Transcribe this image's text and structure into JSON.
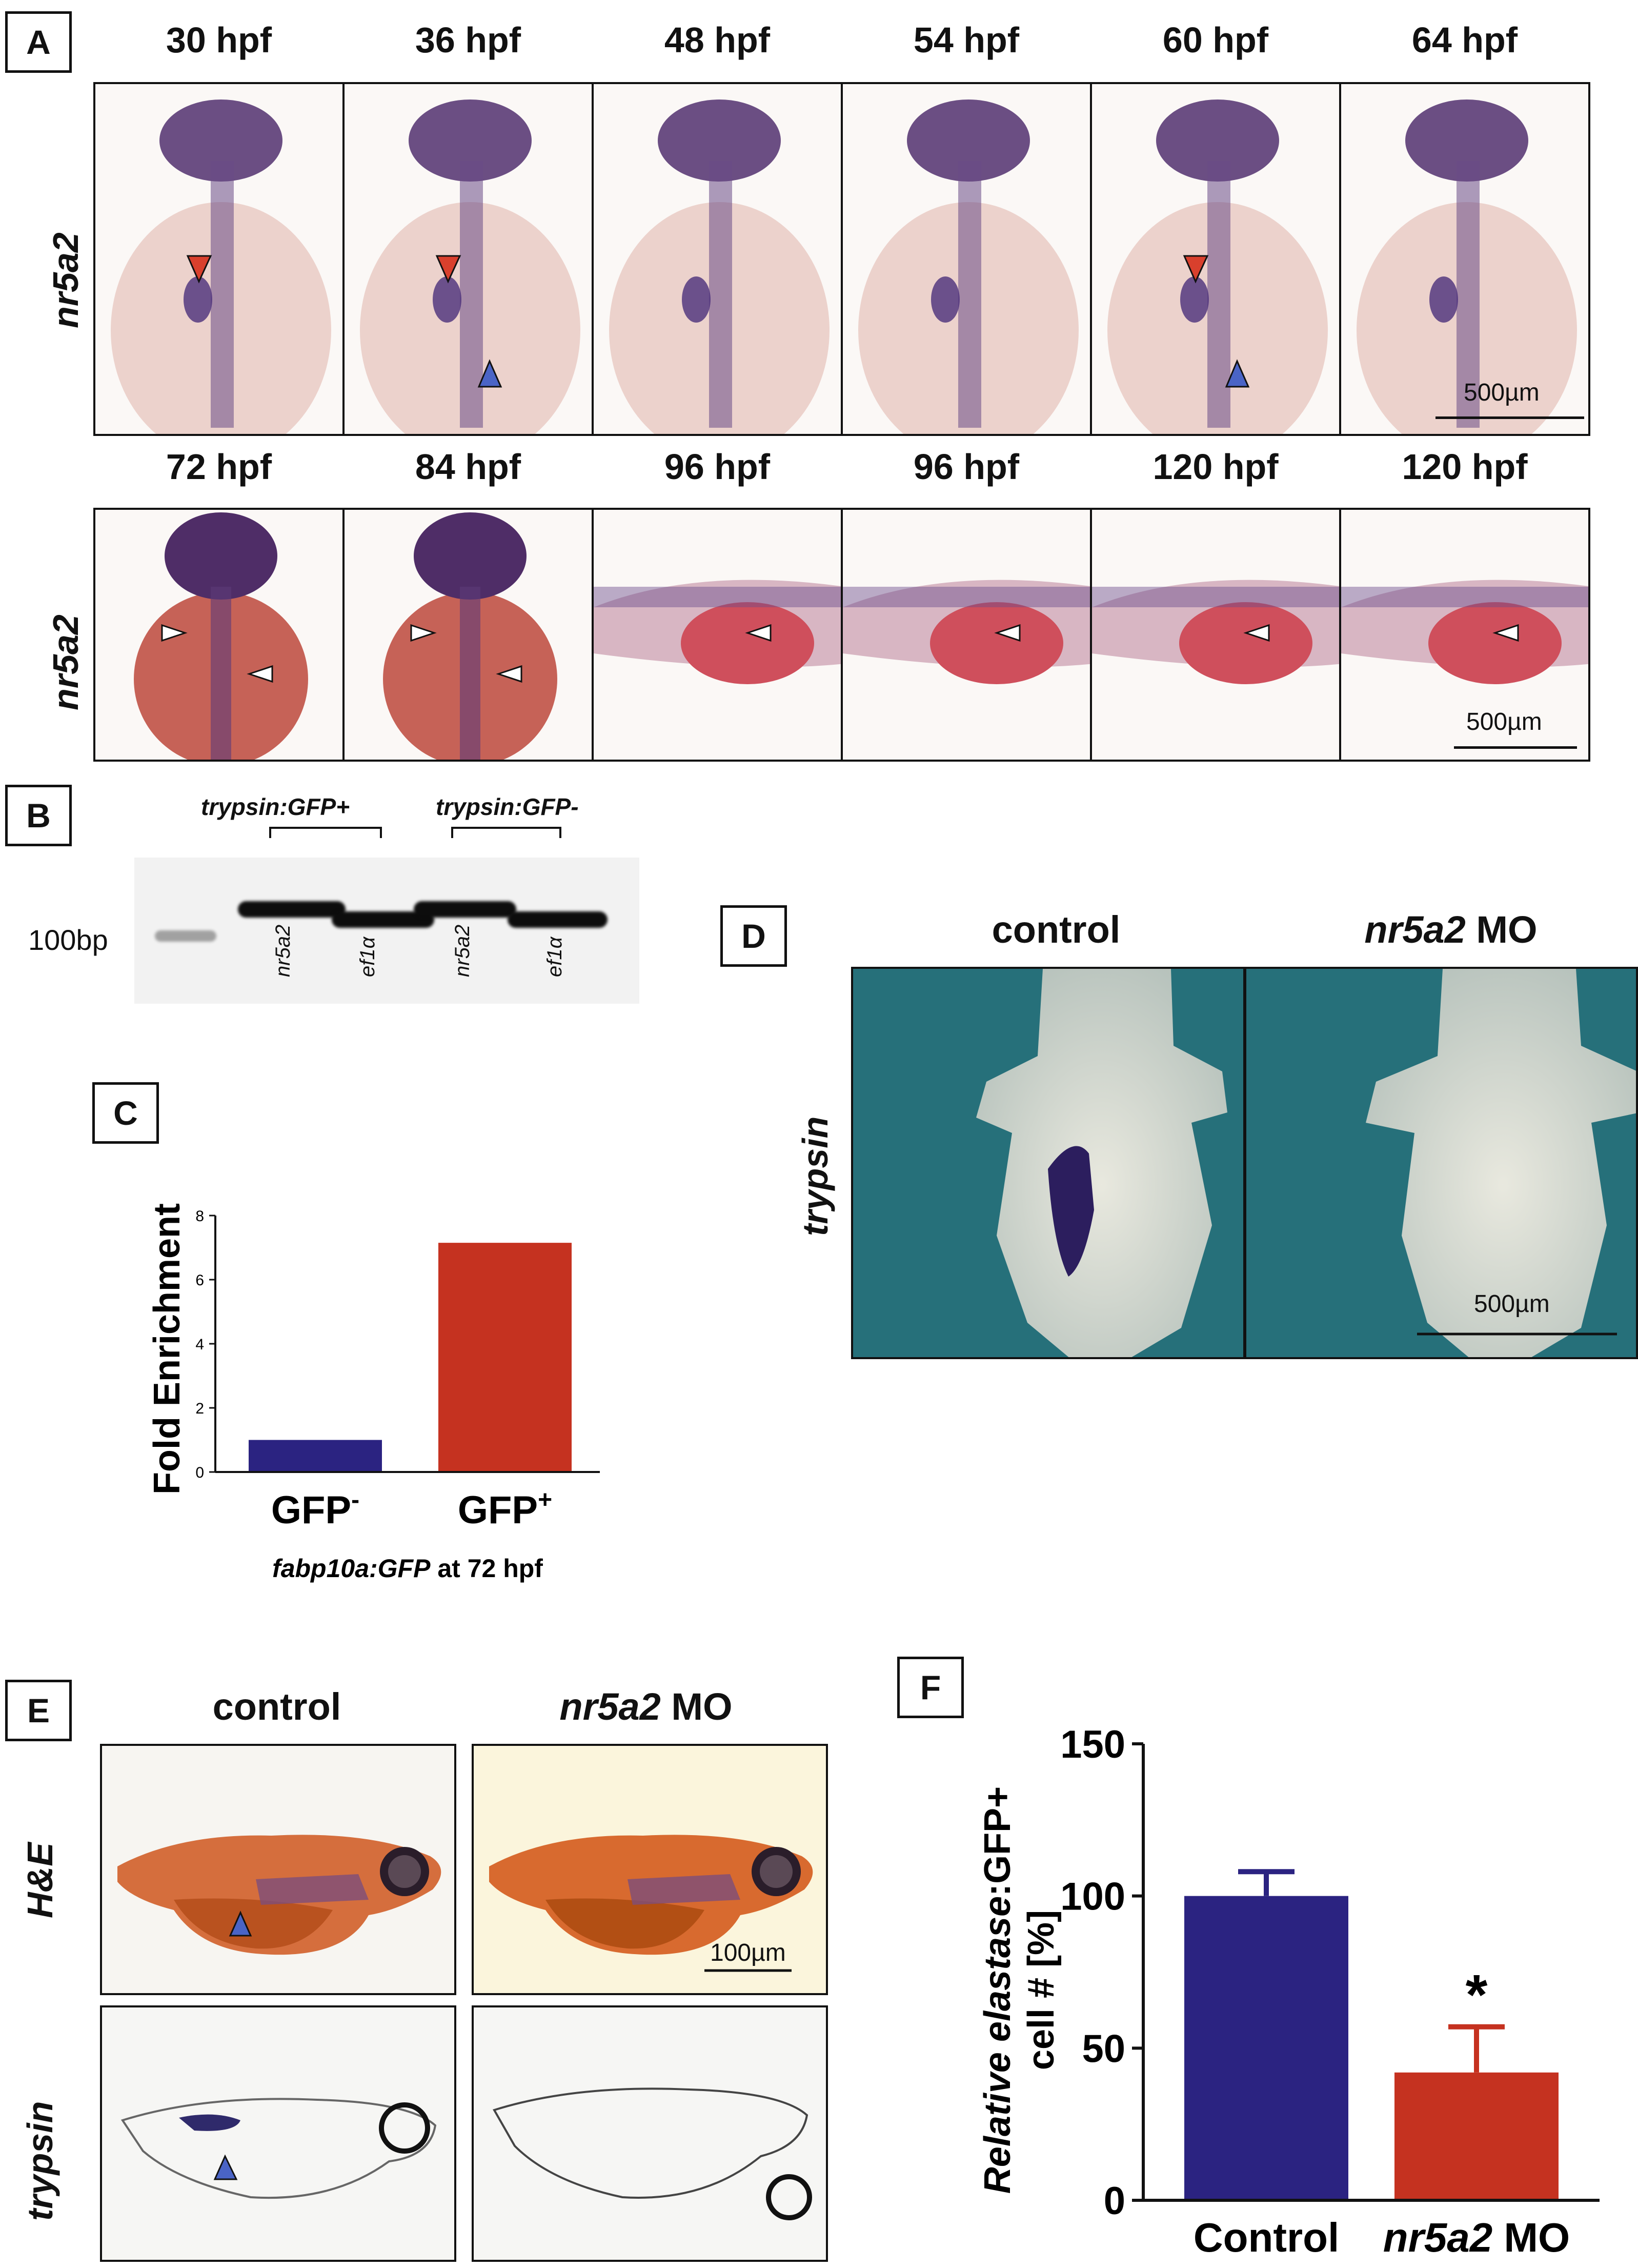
{
  "panelA": {
    "letter": "A",
    "row1_label": "nr5a2",
    "row2_label": "nr5a2",
    "row1_stages": [
      "30 hpf",
      "36 hpf",
      "48 hpf",
      "54 hpf",
      "60 hpf",
      "64 hpf"
    ],
    "row2_stages": [
      "72 hpf",
      "84 hpf",
      "96 hpf",
      "96 hpf",
      "120 hpf",
      "120 hpf"
    ],
    "scale1": "500µm",
    "scale2": "500µm"
  },
  "panelB": {
    "letter": "B",
    "group1": "trypsin:GFP+",
    "group2": "trypsin:GFP-",
    "marker": "100bp",
    "lanes": [
      "nr5a2",
      "ef1α",
      "nr5a2",
      "ef1α"
    ]
  },
  "panelC": {
    "letter": "C",
    "subtitle": "fabp10a:GFP at 72 hpf",
    "subtitle_italic": "fabp10a:GFP",
    "subtitle_rest": " at 72 hpf",
    "cat1_base": "GFP",
    "cat1_sup": "-",
    "cat2_base": "GFP",
    "cat2_sup": "+"
  },
  "panelD": {
    "letter": "D",
    "col1": "control",
    "col2_italic": "nr5a2",
    "col2_rest": " MO",
    "row_label": "trypsin",
    "scale": "500µm"
  },
  "panelE": {
    "letter": "E",
    "col1": "control",
    "col2_italic": "nr5a2",
    "col2_rest": " MO",
    "row1_label": "H&E",
    "row2_label": "trypsin",
    "scale": "100µm"
  },
  "panelF": {
    "letter": "F",
    "ylabel_italic": "Relative elastase",
    "ylabel_rest": ":GFP+",
    "ylabel_line2": "cell # [%]",
    "star": "*",
    "cat1": "Control",
    "cat2_italic": "nr5a2",
    "cat2_rest": " MO"
  },
  "chart_data": [
    {
      "type": "bar",
      "panel": "C",
      "categories": [
        "GFP-",
        "GFP+"
      ],
      "values": [
        1.0,
        7.15
      ],
      "ylabel": "Fold Enrichment",
      "xlabel": "fabp10a:GFP at 72 hpf",
      "ylim": [
        0,
        8
      ],
      "yticks": [
        0,
        2,
        4,
        6,
        8
      ],
      "colors": [
        "#2b2381",
        "#c53220"
      ]
    },
    {
      "type": "bar",
      "panel": "F",
      "categories": [
        "Control",
        "nr5a2 MO"
      ],
      "values": [
        100,
        42
      ],
      "errors": [
        8,
        15
      ],
      "ylabel": "Relative elastase:GFP+ cell # [%]",
      "ylim": [
        0,
        150
      ],
      "yticks": [
        0,
        50,
        100,
        150
      ],
      "colors": [
        "#2b2381",
        "#c53220"
      ],
      "annotation": "*"
    }
  ]
}
